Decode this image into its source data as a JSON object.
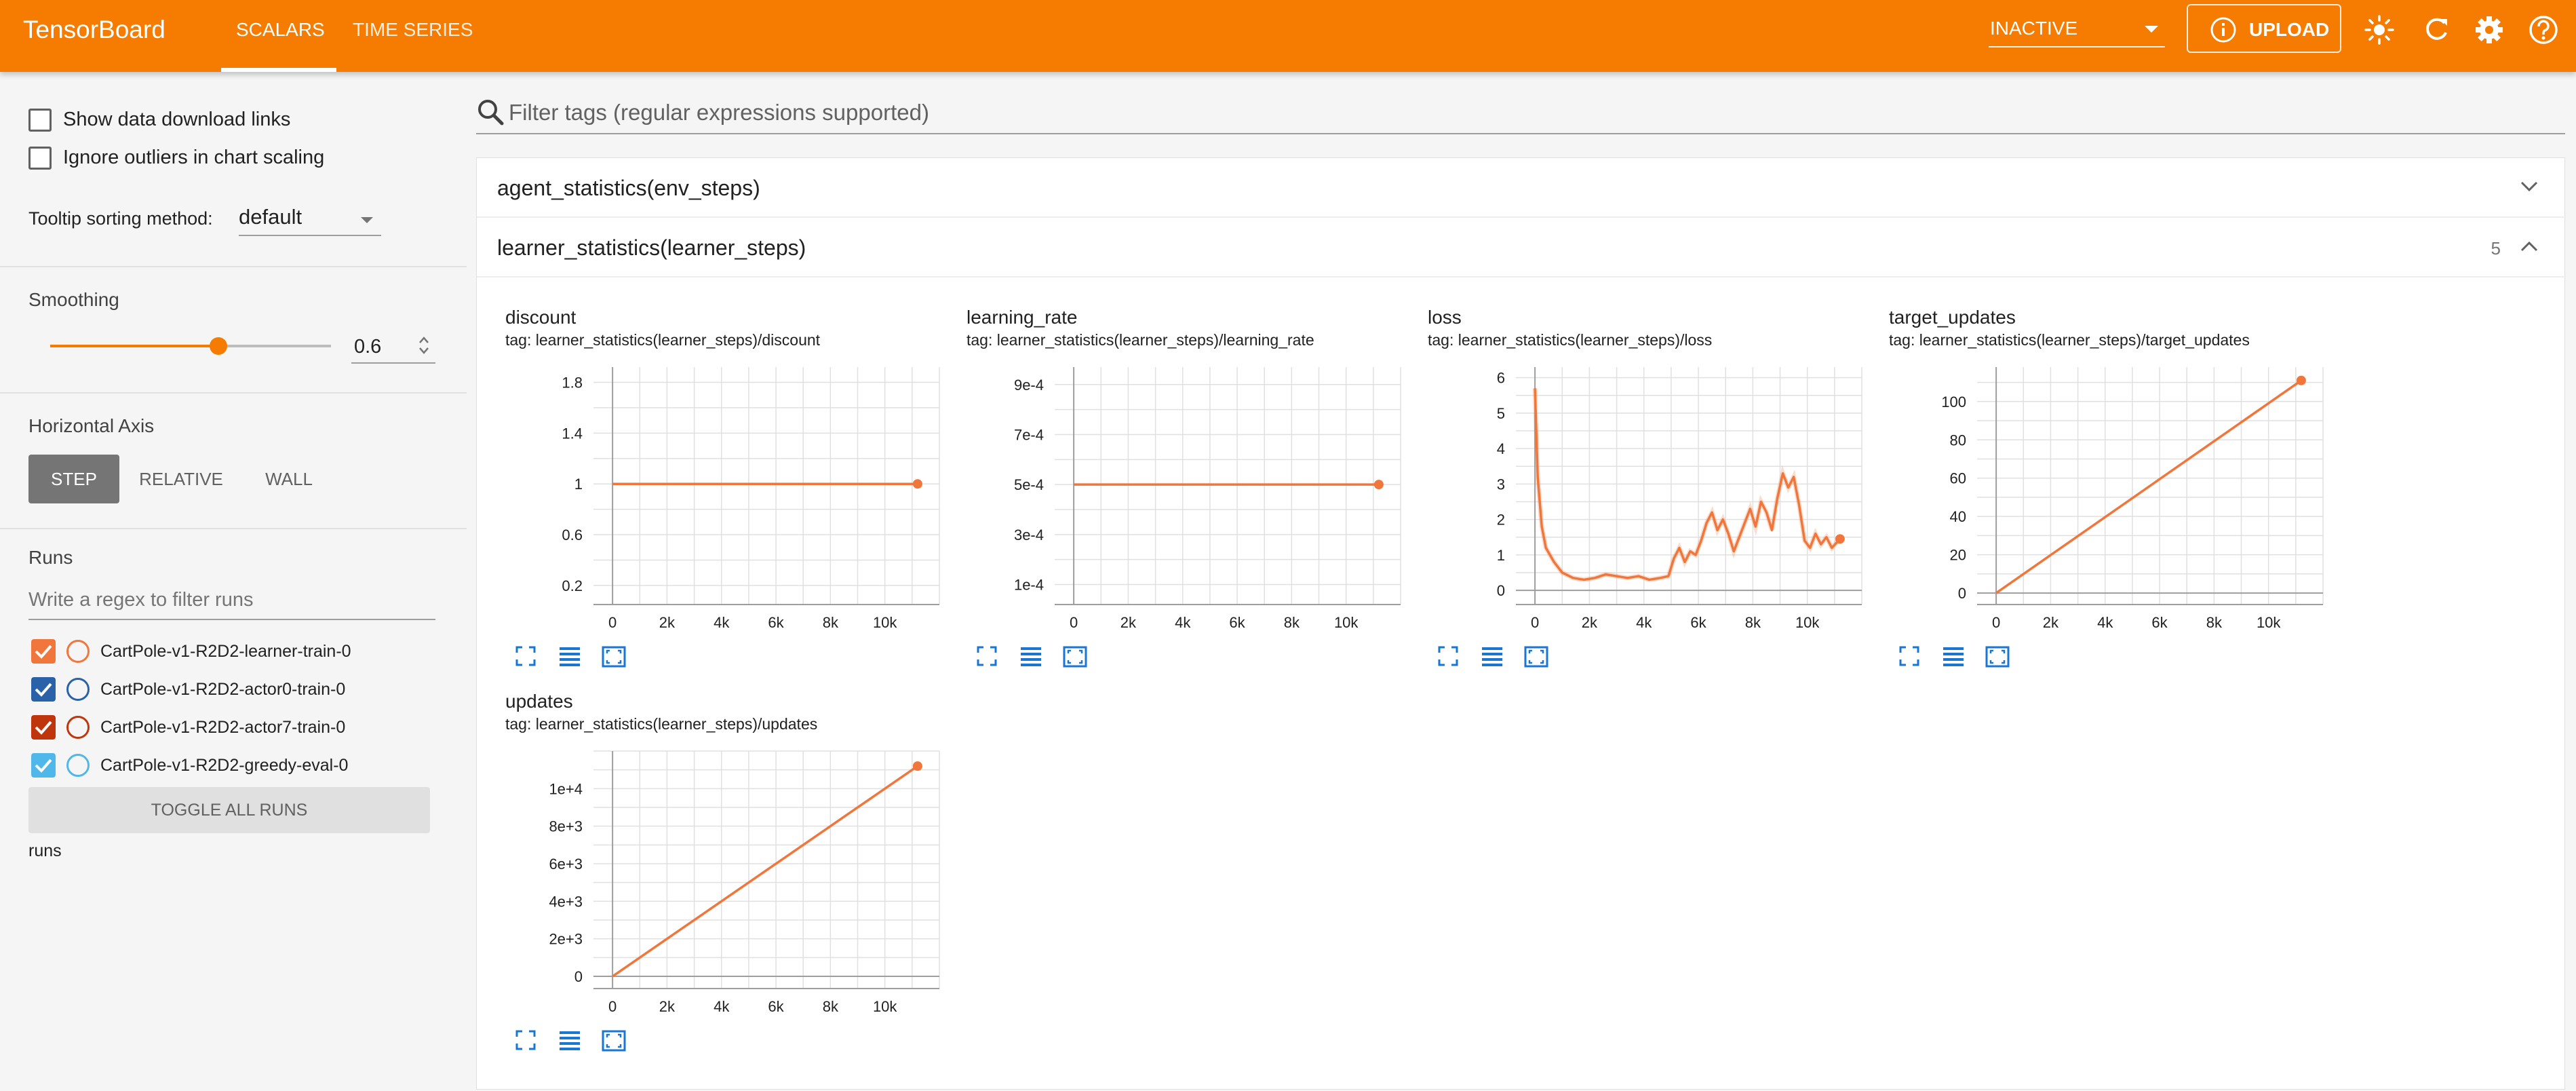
{
  "colors": {
    "accent": "#f57c00",
    "line": "#f0763c",
    "grid": "#e0e0e0",
    "axis": "#9e9e9e"
  },
  "topbar": {
    "brand": "TensorBoard",
    "tabs": [
      {
        "label": "SCALARS",
        "active": true
      },
      {
        "label": "TIME SERIES",
        "active": false
      }
    ],
    "status_select": "INACTIVE",
    "upload_label": "UPLOAD",
    "icons": [
      "info-icon",
      "brightness-icon",
      "refresh-icon",
      "settings-icon",
      "help-icon"
    ]
  },
  "sidebar": {
    "show_download_links": {
      "label": "Show data download links",
      "checked": false
    },
    "ignore_outliers": {
      "label": "Ignore outliers in chart scaling",
      "checked": false
    },
    "tooltip_sorting": {
      "label": "Tooltip sorting method:",
      "value": "default"
    },
    "smoothing": {
      "label": "Smoothing",
      "value": "0.6",
      "fraction": 0.6
    },
    "horizontal_axis": {
      "label": "Horizontal Axis",
      "options": [
        "STEP",
        "RELATIVE",
        "WALL"
      ],
      "selected": "STEP"
    },
    "runs": {
      "label": "Runs",
      "filter_placeholder": "Write a regex to filter runs",
      "items": [
        {
          "name": "CartPole-v1-R2D2-learner-train-0",
          "color": "#f0763c",
          "checked": true
        },
        {
          "name": "CartPole-v1-R2D2-actor0-train-0",
          "color": "#2962a8",
          "checked": true
        },
        {
          "name": "CartPole-v1-R2D2-actor7-train-0",
          "color": "#bf360c",
          "checked": true
        },
        {
          "name": "CartPole-v1-R2D2-greedy-eval-0",
          "color": "#4fb7ea",
          "checked": true
        }
      ],
      "toggle_all": "TOGGLE ALL RUNS",
      "footer": "runs"
    }
  },
  "main": {
    "filter_placeholder": "Filter tags (regular expressions supported)",
    "groups": [
      {
        "label": "agent_statistics(env_steps)",
        "count": "",
        "expanded": false
      },
      {
        "label": "learner_statistics(learner_steps)",
        "count": "5",
        "expanded": true
      }
    ]
  },
  "chart_data": [
    {
      "type": "line",
      "title": "discount",
      "tag": "tag: learner_statistics(learner_steps)/discount",
      "x": [
        0,
        11200
      ],
      "y": [
        1,
        1
      ],
      "xlim": [
        -700,
        12000
      ],
      "ylim": [
        0.05,
        1.92
      ],
      "xticks": [
        0,
        2000,
        4000,
        6000,
        8000,
        10000
      ],
      "xtick_labels": [
        "0",
        "2k",
        "4k",
        "6k",
        "8k",
        "10k"
      ],
      "yticks": [
        0.2,
        0.6,
        1,
        1.4,
        1.8
      ],
      "ytick_labels": [
        "0.2",
        "0.6",
        "1",
        "1.4",
        "1.8"
      ]
    },
    {
      "type": "line",
      "title": "learning_rate",
      "tag": "tag: learner_statistics(learner_steps)/learning_rate",
      "x": [
        0,
        11200
      ],
      "y": [
        0.0005,
        0.0005
      ],
      "xlim": [
        -700,
        12000
      ],
      "ylim": [
        2e-05,
        0.00097
      ],
      "xticks": [
        0,
        2000,
        4000,
        6000,
        8000,
        10000
      ],
      "xtick_labels": [
        "0",
        "2k",
        "4k",
        "6k",
        "8k",
        "10k"
      ],
      "yticks": [
        0.0001,
        0.0003,
        0.0005,
        0.0007,
        0.0009
      ],
      "ytick_labels": [
        "1e-4",
        "3e-4",
        "5e-4",
        "7e-4",
        "9e-4"
      ]
    },
    {
      "type": "line",
      "title": "loss",
      "tag": "tag: learner_statistics(learner_steps)/loss",
      "x": [
        0,
        100,
        250,
        400,
        700,
        1000,
        1400,
        1800,
        2200,
        2600,
        3000,
        3400,
        3800,
        4200,
        4600,
        4900,
        5100,
        5300,
        5500,
        5700,
        5900,
        6100,
        6300,
        6500,
        6700,
        6900,
        7100,
        7300,
        7500,
        7700,
        7900,
        8100,
        8300,
        8500,
        8700,
        8900,
        9100,
        9300,
        9500,
        9700,
        9900,
        10100,
        10300,
        10500,
        10700,
        10900,
        11200
      ],
      "y": [
        5.7,
        3.2,
        1.8,
        1.2,
        0.8,
        0.5,
        0.35,
        0.3,
        0.35,
        0.45,
        0.4,
        0.35,
        0.4,
        0.3,
        0.35,
        0.4,
        0.9,
        1.2,
        0.8,
        1.1,
        1.0,
        1.4,
        1.9,
        2.2,
        1.7,
        2.0,
        1.6,
        1.1,
        1.5,
        1.9,
        2.3,
        1.8,
        2.5,
        2.2,
        1.7,
        2.6,
        3.3,
        2.9,
        3.2,
        2.4,
        1.4,
        1.2,
        1.6,
        1.3,
        1.5,
        1.2,
        1.45
      ],
      "xlim": [
        -700,
        12000
      ],
      "ylim": [
        -0.4,
        6.3
      ],
      "xticks": [
        0,
        2000,
        4000,
        6000,
        8000,
        10000
      ],
      "xtick_labels": [
        "0",
        "2k",
        "4k",
        "6k",
        "8k",
        "10k"
      ],
      "yticks": [
        0,
        1,
        2,
        3,
        4,
        5,
        6
      ],
      "ytick_labels": [
        "0",
        "1",
        "2",
        "3",
        "4",
        "5",
        "6"
      ]
    },
    {
      "type": "line",
      "title": "target_updates",
      "tag": "tag: learner_statistics(learner_steps)/target_updates",
      "x": [
        0,
        11200
      ],
      "y": [
        0,
        111
      ],
      "xlim": [
        -700,
        12000
      ],
      "ylim": [
        -6,
        118
      ],
      "xticks": [
        0,
        2000,
        4000,
        6000,
        8000,
        10000
      ],
      "xtick_labels": [
        "0",
        "2k",
        "4k",
        "6k",
        "8k",
        "10k"
      ],
      "yticks": [
        0,
        20,
        40,
        60,
        80,
        100
      ],
      "ytick_labels": [
        "0",
        "20",
        "40",
        "60",
        "80",
        "100"
      ]
    },
    {
      "type": "line",
      "title": "updates",
      "tag": "tag: learner_statistics(learner_steps)/updates",
      "x": [
        0,
        11200
      ],
      "y": [
        0,
        11200
      ],
      "xlim": [
        -700,
        12000
      ],
      "ylim": [
        -650,
        12000
      ],
      "xticks": [
        0,
        2000,
        4000,
        6000,
        8000,
        10000
      ],
      "xtick_labels": [
        "0",
        "2k",
        "4k",
        "6k",
        "8k",
        "10k"
      ],
      "yticks": [
        0,
        2000,
        4000,
        6000,
        8000,
        10000
      ],
      "ytick_labels": [
        "0",
        "2e+3",
        "4e+3",
        "6e+3",
        "8e+3",
        "1e+4"
      ]
    }
  ]
}
